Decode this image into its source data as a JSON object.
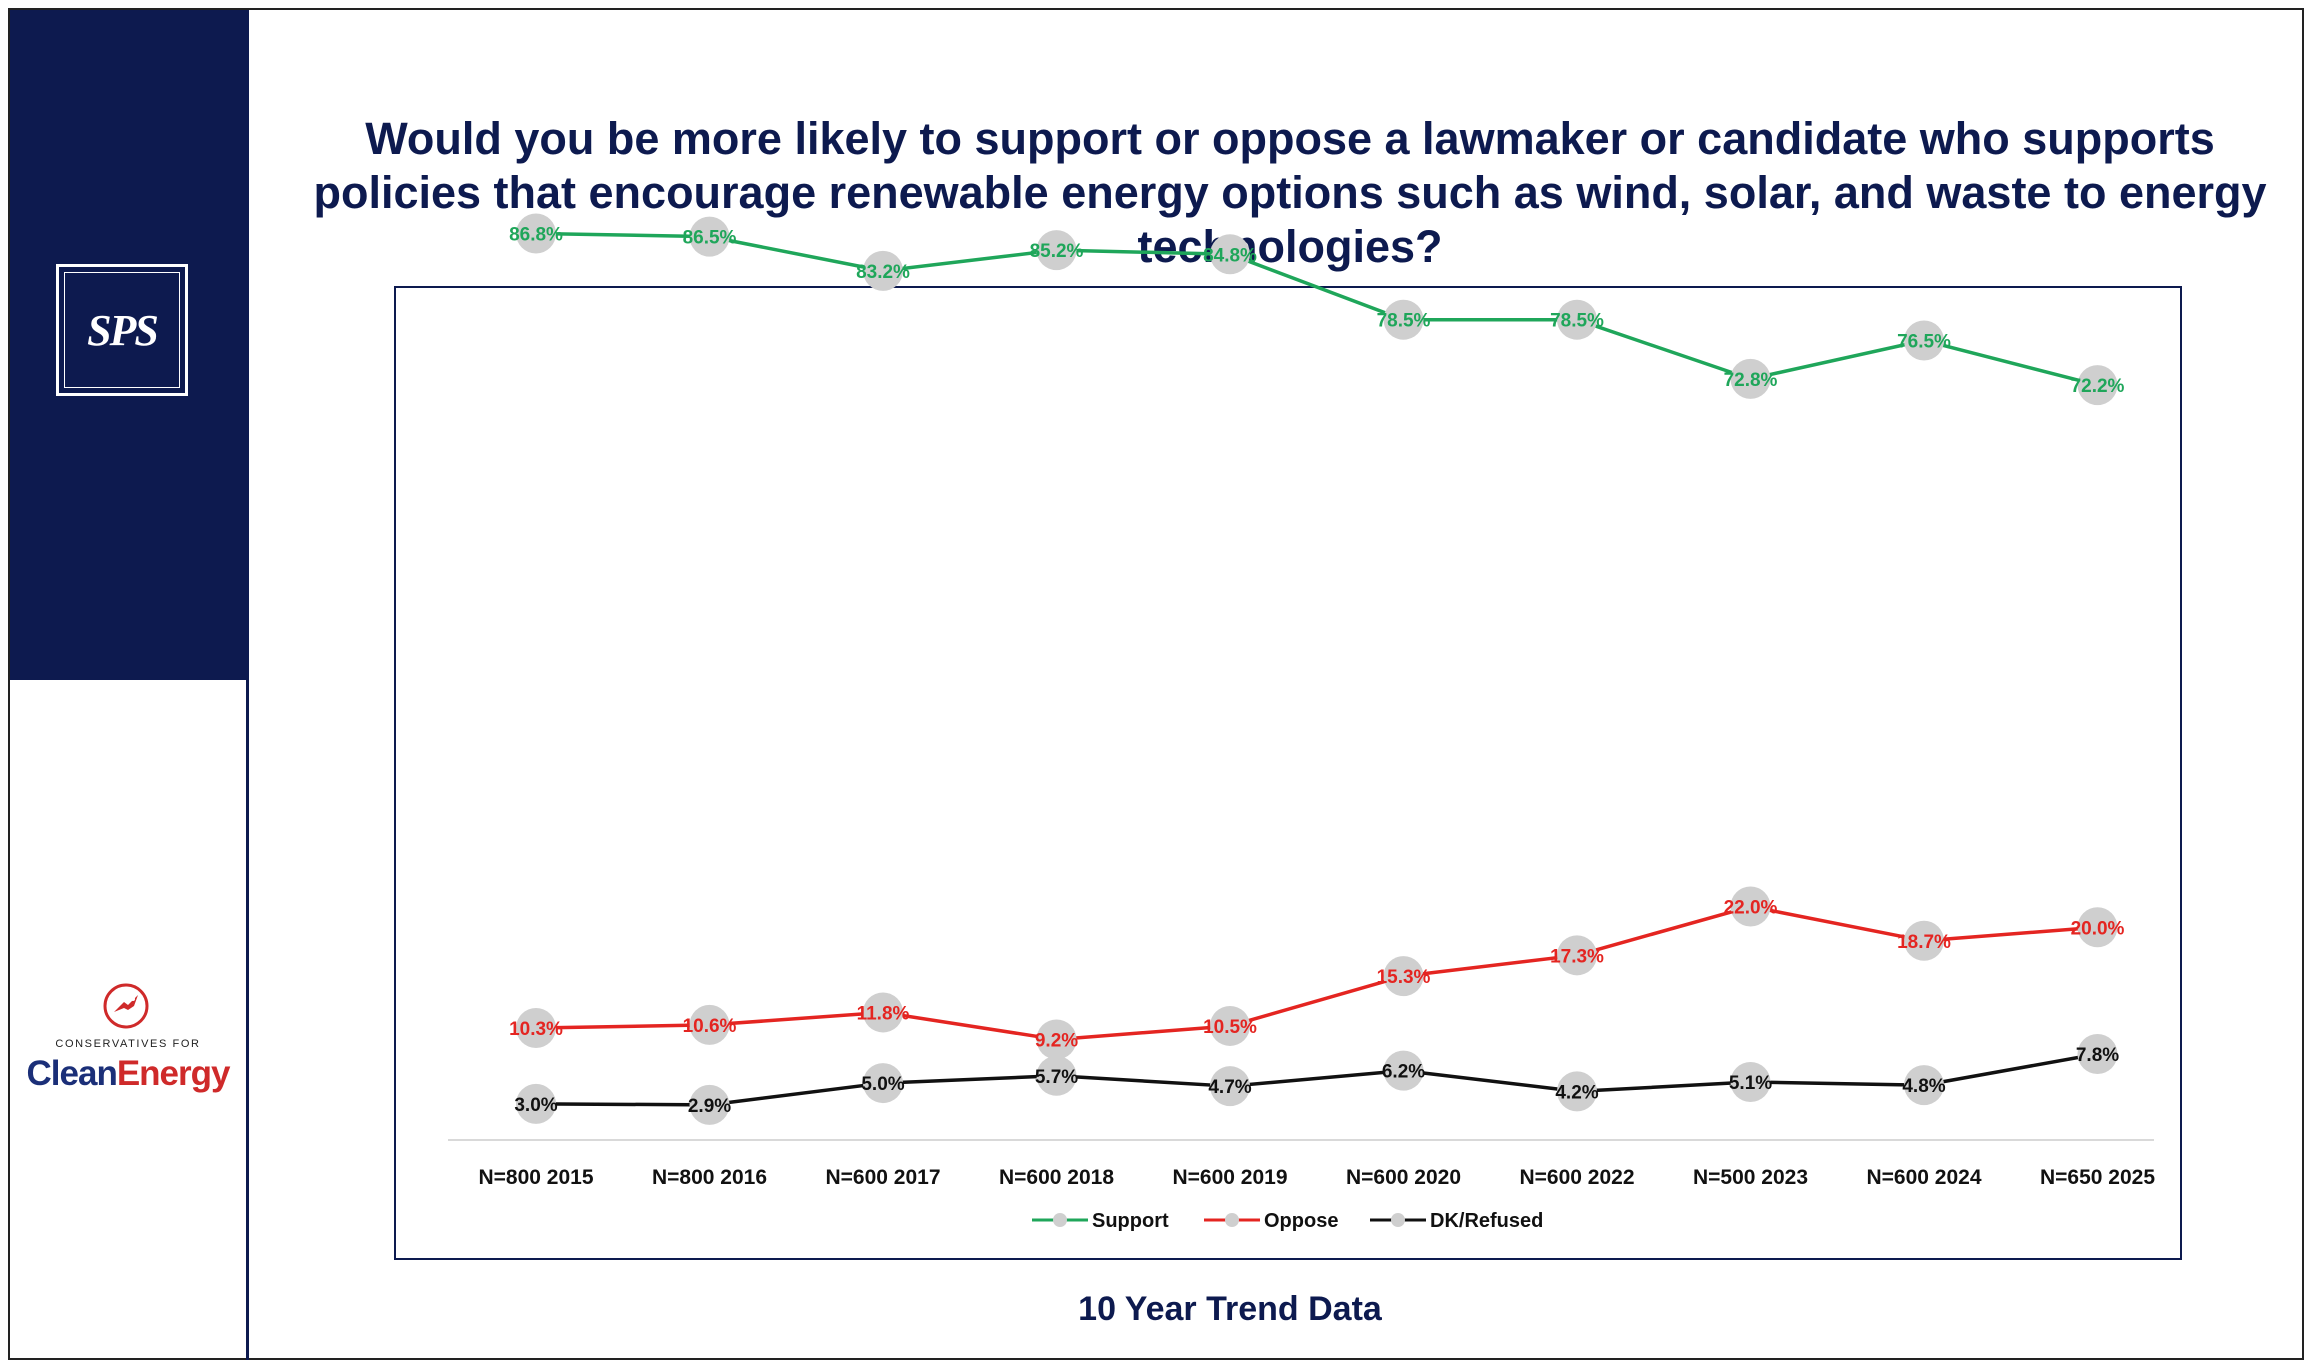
{
  "title": "Would you be more likely to support or oppose a lawmaker or candidate who supports policies that encourage renewable energy options such as wind, solar, and waste to energy technologies?",
  "footer": "10 Year Trend Data",
  "logos": {
    "sps": "SPS",
    "cce_small": "CONSERVATIVES FOR",
    "cce_clean": "Clean",
    "cce_energy": "Energy"
  },
  "colors": {
    "navy": "#0d1a4f",
    "support": "#1fa65a",
    "oppose": "#e42521",
    "dk": "#111111",
    "marker": "#cfcfcf"
  },
  "chart_data": {
    "type": "line",
    "categories": [
      "N=800 2015",
      "N=800 2016",
      "N=600 2017",
      "N=600 2018",
      "N=600 2019",
      "N=600 2020",
      "N=600 2022",
      "N=500 2023",
      "N=600 2024",
      "N=650 2025"
    ],
    "series": [
      {
        "name": "Support",
        "color": "#1fa65a",
        "values": [
          86.8,
          86.5,
          83.2,
          85.2,
          84.8,
          78.5,
          78.5,
          72.8,
          76.5,
          72.2
        ],
        "labels": [
          "86.8%",
          "86.5%",
          "83.2%",
          "85.2%",
          "84.8%",
          "78.5%",
          "78.5%",
          "72.8%",
          "76.5%",
          "72.2%"
        ]
      },
      {
        "name": "Oppose",
        "color": "#e42521",
        "values": [
          10.3,
          10.6,
          11.8,
          9.2,
          10.5,
          15.3,
          17.3,
          22.0,
          18.7,
          20.0
        ],
        "labels": [
          "10.3%",
          "10.6%",
          "11.8%",
          "9.2%",
          "10.5%",
          "15.3%",
          "17.3%",
          "22.0%",
          "18.7%",
          "20.0%"
        ]
      },
      {
        "name": "DK/Refused",
        "color": "#111111",
        "values": [
          3.0,
          2.9,
          5.0,
          5.7,
          4.7,
          6.2,
          4.2,
          5.1,
          4.8,
          7.8
        ],
        "labels": [
          "3.0%",
          "2.9%",
          "5.0%",
          "5.7%",
          "4.7%",
          "6.2%",
          "4.2%",
          "5.1%",
          "4.8%",
          "7.8%"
        ]
      }
    ],
    "ylim": [
      0,
      100
    ],
    "xlabel": "",
    "ylabel": "",
    "grid": false,
    "legend": "bottom"
  }
}
